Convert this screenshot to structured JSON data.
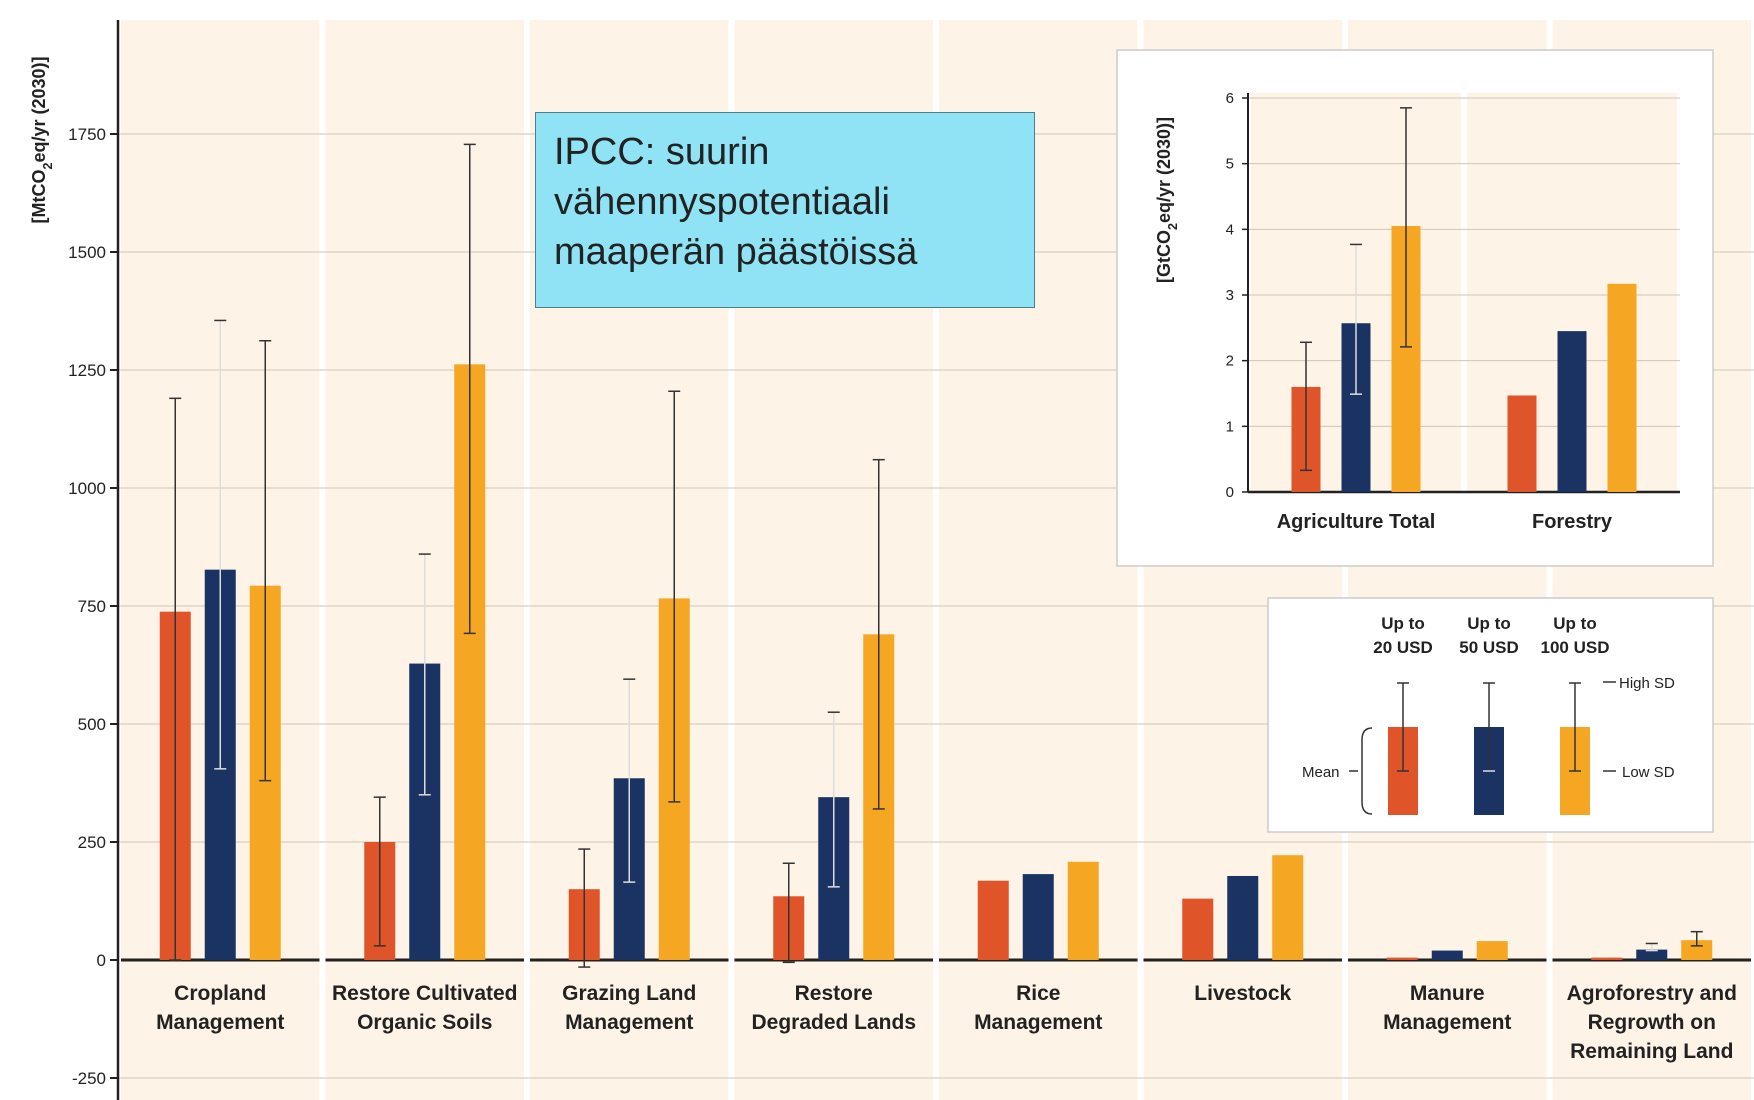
{
  "callout": {
    "lines": [
      "IPCC: suurin",
      "vähennyspotentiaali",
      "maaperän päästöissä"
    ]
  },
  "chart_data": [
    {
      "type": "bar",
      "ylabel": "[MtCO2eq/yr (2030)]",
      "ylim": [
        -250,
        1900
      ],
      "yticks": [
        -250,
        0,
        250,
        500,
        750,
        1000,
        1250,
        1500,
        1750
      ],
      "categories": [
        [
          "Cropland",
          "Management"
        ],
        [
          "Restore Cultivated",
          "Organic Soils"
        ],
        [
          "Grazing Land",
          "Management"
        ],
        [
          "Restore",
          "Degraded Lands"
        ],
        [
          "Rice",
          "Management"
        ],
        [
          "Livestock"
        ],
        [
          "Manure",
          "Management"
        ],
        [
          "Agroforestry and",
          "Regrowth on",
          "Remaining Land"
        ]
      ],
      "series": [
        {
          "color": "#e0542a",
          "values": [
            738,
            250,
            150,
            135,
            168,
            130,
            5,
            5
          ],
          "high_sd": [
            1190,
            345,
            235,
            205,
            null,
            null,
            null,
            null
          ],
          "low_sd": [
            0,
            30,
            -15,
            -5,
            null,
            null,
            null,
            null
          ]
        },
        {
          "color": "#1b3362",
          "values": [
            827,
            628,
            385,
            345,
            182,
            178,
            20,
            22
          ],
          "high_sd": [
            1355,
            860,
            595,
            525,
            null,
            null,
            null,
            35
          ],
          "low_sd": [
            405,
            350,
            165,
            155,
            null,
            null,
            null,
            20
          ]
        },
        {
          "color": "#f5a623",
          "values": [
            793,
            1262,
            766,
            690,
            208,
            222,
            40,
            42
          ],
          "high_sd": [
            1312,
            1728,
            1205,
            1060,
            null,
            null,
            null,
            60
          ],
          "low_sd": [
            380,
            692,
            335,
            320,
            null,
            null,
            null,
            30
          ]
        }
      ],
      "grid": true
    },
    {
      "type": "bar",
      "ylabel": "[GtCO2eq/yr (2030)]",
      "ylim": [
        0,
        6
      ],
      "yticks": [
        0,
        1,
        2,
        3,
        4,
        5,
        6
      ],
      "categories": [
        "Agriculture Total",
        "Forestry"
      ],
      "series": [
        {
          "color": "#e0542a",
          "values": [
            1.6,
            1.47
          ],
          "high_sd": [
            2.28,
            null
          ],
          "low_sd": [
            0.33,
            null
          ]
        },
        {
          "color": "#1b3362",
          "values": [
            2.57,
            2.45
          ],
          "high_sd": [
            3.77,
            null
          ],
          "low_sd": [
            1.49,
            null
          ]
        },
        {
          "color": "#f5a623",
          "values": [
            4.05,
            3.17
          ],
          "high_sd": [
            5.85,
            null
          ],
          "low_sd": [
            2.21,
            null
          ]
        }
      ]
    }
  ],
  "legend": {
    "columns": [
      {
        "line1": "Up to",
        "line2": "20 USD",
        "color": "#e0542a"
      },
      {
        "line1": "Up to",
        "line2": "50 USD",
        "color": "#1b3362"
      },
      {
        "line1": "Up to",
        "line2": "100 USD",
        "color": "#f5a623"
      }
    ],
    "mean_label": "Mean",
    "high_label": "High SD",
    "low_label": "Low SD"
  }
}
